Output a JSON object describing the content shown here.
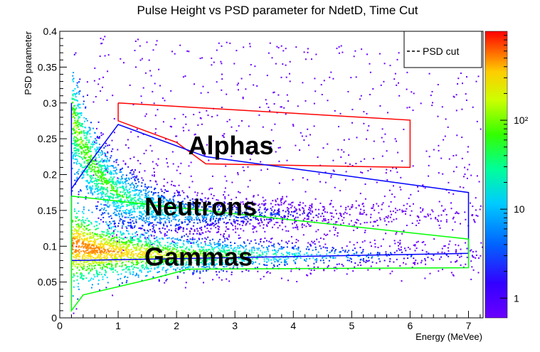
{
  "chart_data": {
    "type": "heatmap",
    "title": "Pulse Height vs PSD parameter for NdetD, Time Cut",
    "xlabel": "Energy (MeVee)",
    "ylabel": "PSD parameter",
    "xlim": [
      0,
      7.25
    ],
    "ylim": [
      0,
      0.4
    ],
    "x_ticks": [
      "0",
      "1",
      "2",
      "3",
      "4",
      "5",
      "6",
      "7"
    ],
    "y_ticks": [
      "0",
      "0.05",
      "0.1",
      "0.15",
      "0.2",
      "0.25",
      "0.3",
      "0.35",
      "0.4"
    ],
    "colorbar": {
      "scale": "log",
      "range": [
        0.6,
        1000
      ],
      "tick_labels": [
        "1",
        "10",
        "10²"
      ]
    },
    "legend": {
      "position": "top-right",
      "entries": [
        {
          "label": "PSD cut",
          "style": "dashed",
          "color": "#000000"
        }
      ]
    },
    "bands": [
      {
        "name": "Gammas",
        "center_psd": 0.09,
        "peak_energy": 0.25
      },
      {
        "name": "Neutrons",
        "center_psd": 0.16,
        "peak_energy": 0.3
      },
      {
        "name": "Alphas",
        "center_psd": 0.25,
        "peak_energy": 0.3
      }
    ],
    "annotations": [
      {
        "text": "Alphas",
        "x": 2.2,
        "y": 0.24
      },
      {
        "text": "Neutrons",
        "x": 1.45,
        "y": 0.155
      },
      {
        "text": "Gammas",
        "x": 1.45,
        "y": 0.085
      }
    ],
    "cut_regions": [
      {
        "name": "alphas",
        "color": "#ff0000",
        "points": [
          [
            1.0,
            0.3
          ],
          [
            6.0,
            0.276
          ],
          [
            6.0,
            0.21
          ],
          [
            2.5,
            0.215
          ],
          [
            2.0,
            0.245
          ],
          [
            1.0,
            0.275
          ],
          [
            1.0,
            0.3
          ]
        ]
      },
      {
        "name": "neutrons",
        "color": "#0000ff",
        "points": [
          [
            0.2,
            0.3
          ],
          [
            0.2,
            0.18
          ],
          [
            0.5,
            0.215
          ],
          [
            1.0,
            0.27
          ],
          [
            2.5,
            0.225
          ],
          [
            7.0,
            0.175
          ],
          [
            7.0,
            0.09
          ],
          [
            0.2,
            0.08
          ],
          [
            0.2,
            0.3
          ]
        ]
      },
      {
        "name": "gammas",
        "color": "#00ff00",
        "points": [
          [
            0.2,
            0.17
          ],
          [
            0.2,
            0.01
          ],
          [
            0.4,
            0.032
          ],
          [
            1.6,
            0.055
          ],
          [
            2.2,
            0.068
          ],
          [
            7.0,
            0.07
          ],
          [
            7.0,
            0.11
          ],
          [
            0.2,
            0.17
          ]
        ]
      }
    ]
  },
  "colors": {
    "alpha_cut": "#ff0000",
    "neutron_cut": "#0000ff",
    "gamma_cut": "#00ff00"
  }
}
